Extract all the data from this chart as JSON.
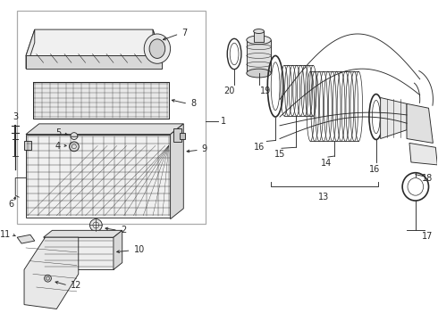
{
  "bg_color": "#ffffff",
  "lc": "#2a2a2a",
  "fig_width": 4.9,
  "fig_height": 3.6,
  "dpi": 100,
  "fs": 7.0,
  "lw": 0.65
}
